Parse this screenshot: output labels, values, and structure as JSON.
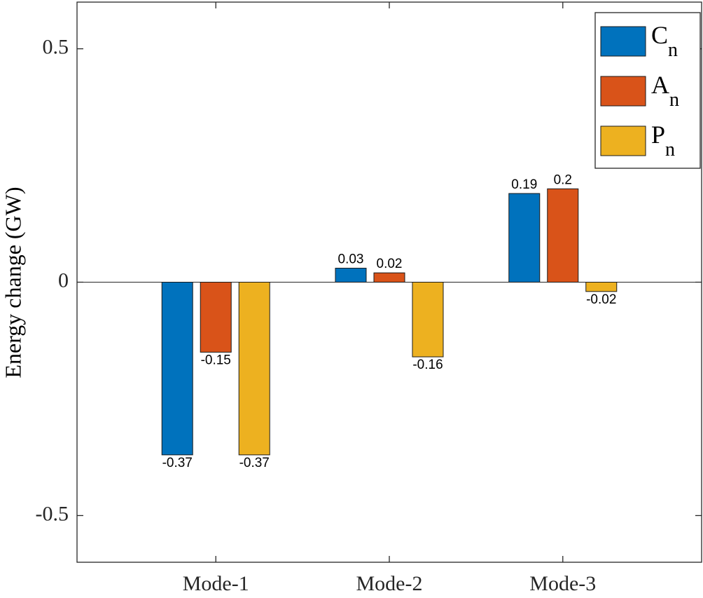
{
  "chart_data": {
    "type": "bar",
    "ylabel": "Energy change (GW)",
    "categories": [
      "Mode-1",
      "Mode-2",
      "Mode-3"
    ],
    "series": [
      {
        "name": "Cn",
        "color": "#0072BD",
        "values": [
          -0.37,
          0.03,
          0.19
        ]
      },
      {
        "name": "An",
        "color": "#D95319",
        "values": [
          -0.15,
          0.02,
          0.2
        ]
      },
      {
        "name": "Pn",
        "color": "#EDB120",
        "values": [
          -0.37,
          -0.16,
          -0.02
        ]
      }
    ],
    "ylim": [
      -0.6,
      0.6
    ],
    "yticks": [
      -0.5,
      0,
      0.5
    ],
    "legend": "upper right"
  }
}
